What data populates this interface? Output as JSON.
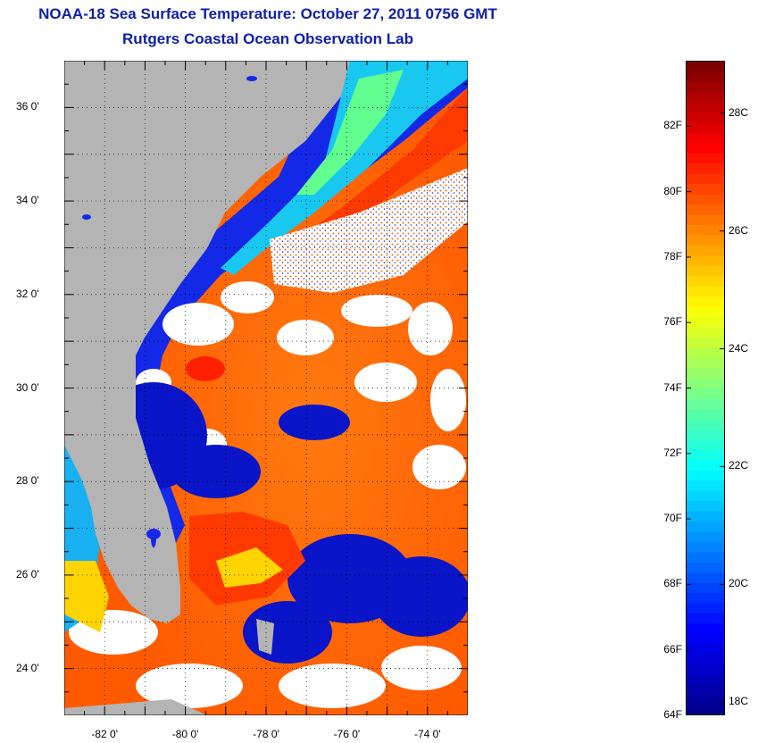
{
  "title": {
    "line1": "NOAA-18 Sea Surface Temperature:  October 27, 2011 0756 GMT",
    "line2": "Rutgers Coastal Ocean Observation Lab"
  },
  "map": {
    "type": "sea-surface-temperature",
    "lat_range": [
      23,
      37
    ],
    "lon_range": [
      -83,
      -73
    ],
    "lat_labels": [
      {
        "value": 36,
        "text": "36 0'"
      },
      {
        "value": 34,
        "text": "34 0'"
      },
      {
        "value": 32,
        "text": "32 0'"
      },
      {
        "value": 30,
        "text": "30 0'"
      },
      {
        "value": 28,
        "text": "28 0'"
      },
      {
        "value": 26,
        "text": "26 0'"
      },
      {
        "value": 24,
        "text": "24 0'"
      }
    ],
    "lon_labels": [
      {
        "value": -82,
        "text": "-82 0'"
      },
      {
        "value": -80,
        "text": "-80 0'"
      },
      {
        "value": -78,
        "text": "-78 0'"
      },
      {
        "value": -76,
        "text": "-76 0'"
      },
      {
        "value": -74,
        "text": "-74 0'"
      }
    ],
    "colors": {
      "land": "#b4b4b4",
      "cloud": "#ffffff",
      "frame": "#000000"
    }
  },
  "colorbar": {
    "min_f": 64,
    "max_f": 84,
    "f_labels": [
      {
        "value": 82,
        "text": "82F"
      },
      {
        "value": 80,
        "text": "80F"
      },
      {
        "value": 78,
        "text": "78F"
      },
      {
        "value": 76,
        "text": "76F"
      },
      {
        "value": 74,
        "text": "74F"
      },
      {
        "value": 72,
        "text": "72F"
      },
      {
        "value": 70,
        "text": "70F"
      },
      {
        "value": 68,
        "text": "68F"
      },
      {
        "value": 66,
        "text": "66F"
      },
      {
        "value": 64,
        "text": "64F"
      }
    ],
    "c_labels": [
      {
        "value": 28,
        "text": "28C"
      },
      {
        "value": 26,
        "text": "26C"
      },
      {
        "value": 24,
        "text": "24C"
      },
      {
        "value": 22,
        "text": "22C"
      },
      {
        "value": 20,
        "text": "20C"
      },
      {
        "value": 18,
        "text": "18C"
      }
    ],
    "colors": [
      "#00008f",
      "#0000ff",
      "#0080ff",
      "#00ffff",
      "#80ff80",
      "#ffff00",
      "#ff8000",
      "#ff0000",
      "#800000"
    ]
  }
}
